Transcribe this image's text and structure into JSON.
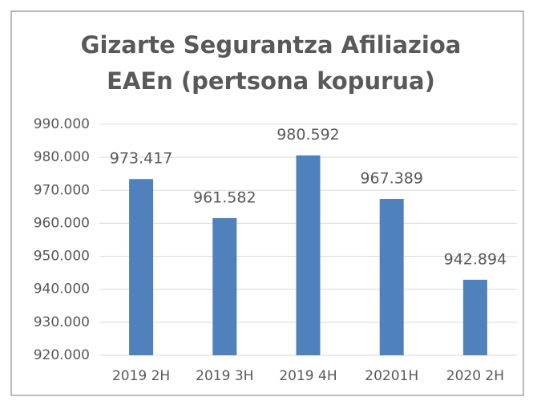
{
  "chart_data": {
    "type": "bar",
    "title": [
      "Gizarte Segurantza Afiliazioa",
      "EAEn (pertsona kopurua)"
    ],
    "categories": [
      "2019 2H",
      "2019 3H",
      "2019 4H",
      "20201H",
      "2020 2H"
    ],
    "values": [
      973417,
      961582,
      980592,
      967389,
      942894
    ],
    "value_labels": [
      "973.417",
      "961.582",
      "980.592",
      "967.389",
      "942.894"
    ],
    "color": "#4f81bd",
    "ylim": [
      920000,
      990000
    ],
    "yticks": [
      {
        "value": 920000,
        "label": "920.000"
      },
      {
        "value": 930000,
        "label": "930.000"
      },
      {
        "value": 940000,
        "label": "940.000"
      },
      {
        "value": 950000,
        "label": "950.000"
      },
      {
        "value": 960000,
        "label": "960.000"
      },
      {
        "value": 970000,
        "label": "970.000"
      },
      {
        "value": 980000,
        "label": "980.000"
      },
      {
        "value": 990000,
        "label": "990.000"
      }
    ],
    "grid": true
  }
}
